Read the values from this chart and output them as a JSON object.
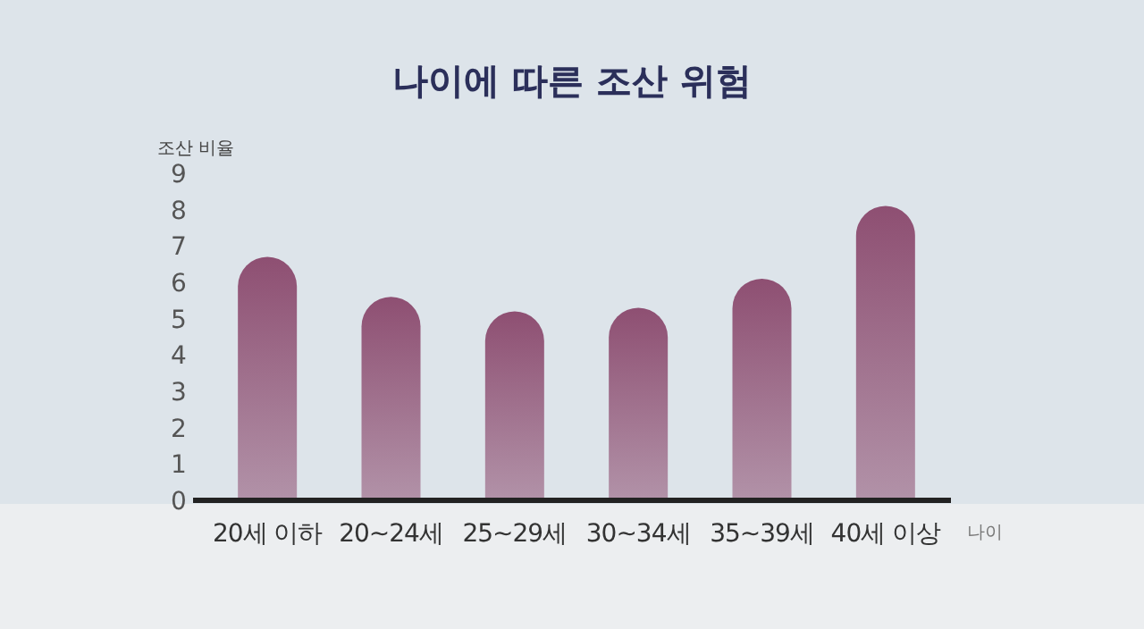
{
  "chart_data": {
    "type": "bar",
    "title": "나이에 따른 조산 위험",
    "ylabel": "조산 비율",
    "xlabel": "나이",
    "categories": [
      "20세 이하",
      "20~24세",
      "25~29세",
      "30~34세",
      "35~39세",
      "40세 이상"
    ],
    "values": [
      6.7,
      5.6,
      5.2,
      5.3,
      6.1,
      8.1
    ],
    "color": "#8e4f72",
    "ylim": [
      0,
      9
    ],
    "yticks": [
      0,
      1,
      2,
      3,
      4,
      5,
      6,
      7,
      8,
      9
    ]
  }
}
